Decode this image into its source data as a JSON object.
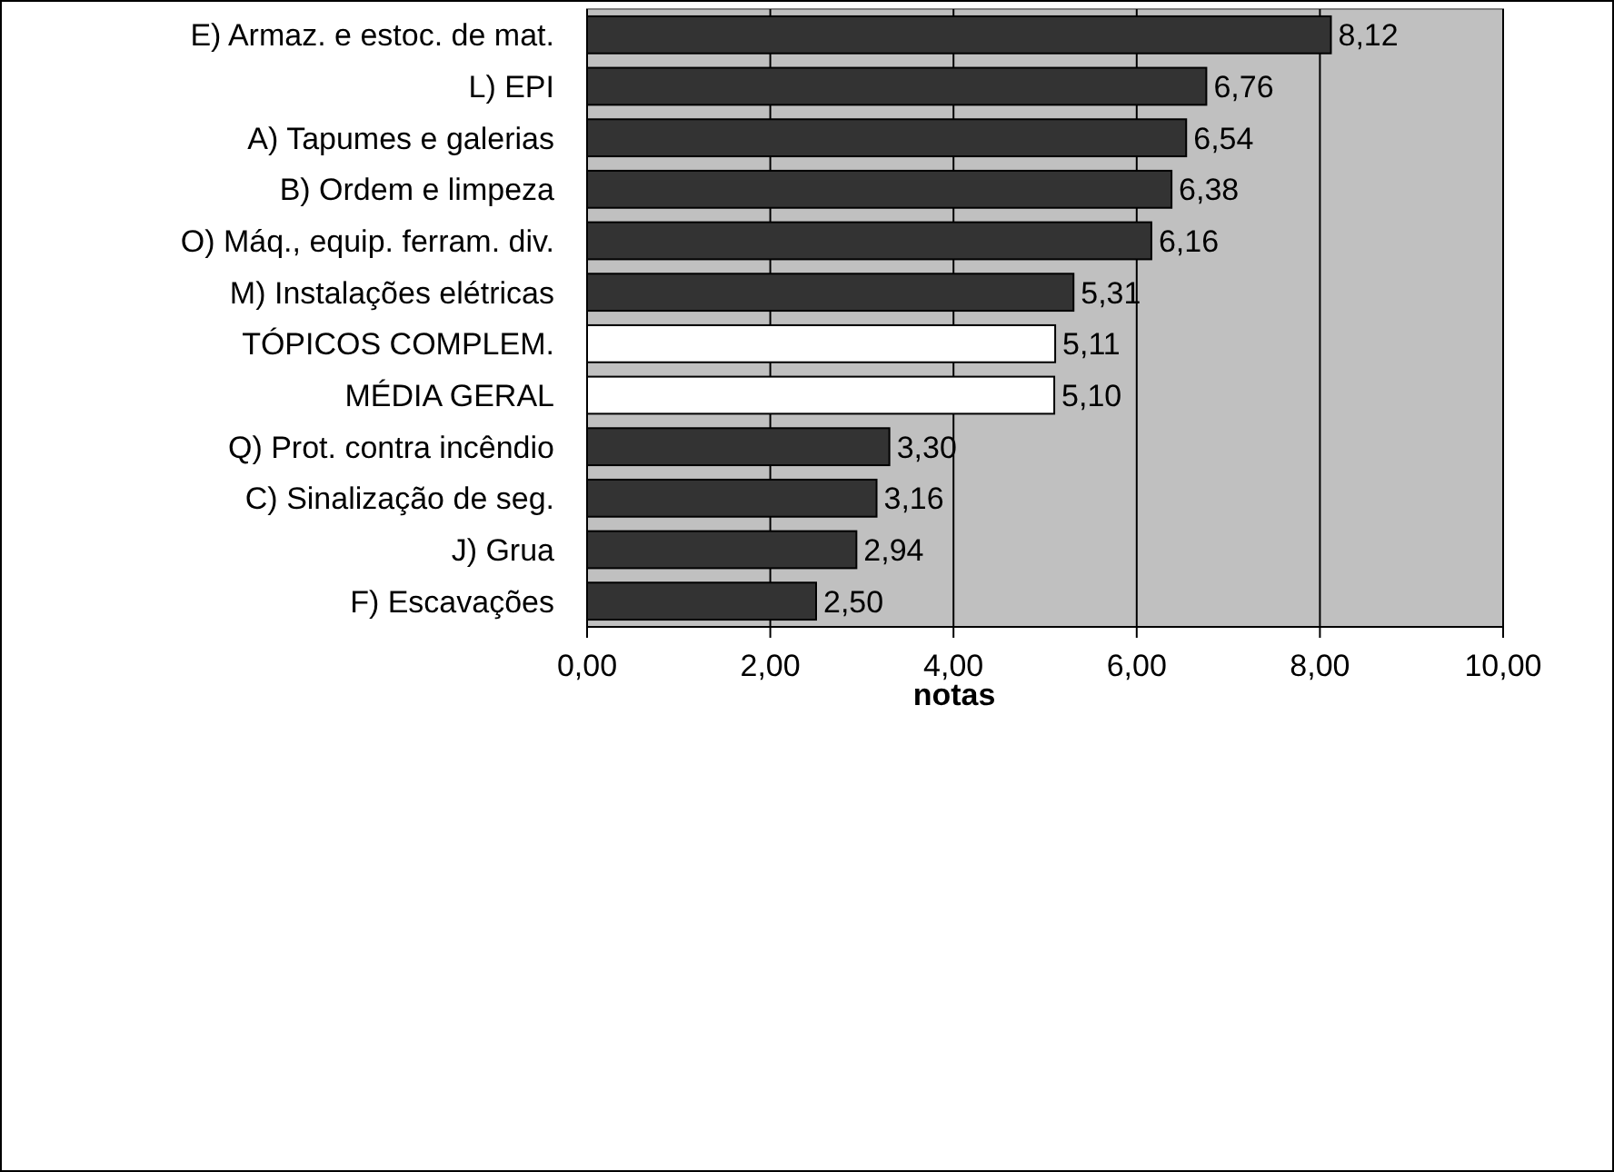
{
  "chart_data": {
    "type": "bar",
    "orientation": "horizontal",
    "xlabel": "notas",
    "categories": [
      "E) Armaz. e estoc. de mat.",
      "L) EPI",
      "A) Tapumes e galerias",
      "B) Ordem e limpeza",
      "O) Máq., equip. ferram. div.",
      "M) Instalações elétricas",
      "TÓPICOS COMPLEM.",
      "MÉDIA GERAL",
      "Q) Prot. contra incêndio",
      "C) Sinalização de seg.",
      "J) Grua",
      "F) Escavações"
    ],
    "values": [
      8.12,
      6.76,
      6.54,
      6.38,
      6.16,
      5.31,
      5.11,
      5.1,
      3.3,
      3.16,
      2.94,
      2.5
    ],
    "value_labels": [
      "8,12",
      "6,76",
      "6,54",
      "6,38",
      "6,16",
      "5,31",
      "5,11",
      "5,10",
      "3,30",
      "3,16",
      "2,94",
      "2,50"
    ],
    "colors": [
      "#333333",
      "#333333",
      "#333333",
      "#333333",
      "#333333",
      "#333333",
      "#ffffff",
      "#ffffff",
      "#333333",
      "#333333",
      "#333333",
      "#333333"
    ],
    "xlim": [
      0,
      10
    ],
    "xticks": [
      {
        "value": 0,
        "label": "0,00"
      },
      {
        "value": 2,
        "label": "2,00"
      },
      {
        "value": 4,
        "label": "4,00"
      },
      {
        "value": 6,
        "label": "6,00"
      },
      {
        "value": 8,
        "label": "8,00"
      },
      {
        "value": 10,
        "label": "10,00"
      }
    ],
    "grid": "x"
  }
}
